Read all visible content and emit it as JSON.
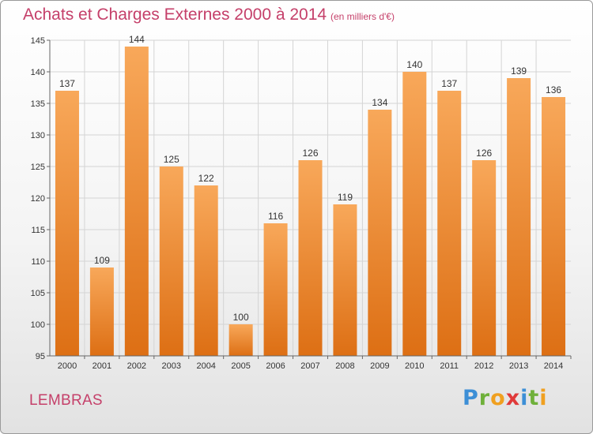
{
  "title": "Achats et Charges Externes 2000 à 2014",
  "subtitle": "(en milliers d'€)",
  "place": "LEMBRAS",
  "logo": {
    "letters": [
      {
        "ch": "P",
        "color": "#3d8fd6"
      },
      {
        "ch": "r",
        "color": "#6fb03a"
      },
      {
        "ch": "o",
        "color": "#f0a020"
      },
      {
        "ch": "x",
        "color": "#e03a3a"
      },
      {
        "ch": "i",
        "color": "#3d8fd6"
      },
      {
        "ch": "t",
        "color": "#6fb03a"
      },
      {
        "ch": "i",
        "color": "#f0a020"
      }
    ]
  },
  "colors": {
    "bar_top": "#f8a85a",
    "bar_bottom": "#dd6f14",
    "text_accent": "#c5406a"
  },
  "chart_data": {
    "type": "bar",
    "categories": [
      "2000",
      "2001",
      "2002",
      "2003",
      "2004",
      "2005",
      "2006",
      "2007",
      "2008",
      "2009",
      "2010",
      "2011",
      "2012",
      "2013",
      "2014"
    ],
    "values": [
      137,
      109,
      144,
      125,
      122,
      100,
      116,
      126,
      119,
      134,
      140,
      137,
      126,
      139,
      136
    ],
    "title": "Achats et Charges Externes 2000 à 2014",
    "subtitle": "(en milliers d'€)",
    "xlabel": "",
    "ylabel": "",
    "ylim": [
      95,
      145
    ],
    "yticks": [
      95,
      100,
      105,
      110,
      115,
      120,
      125,
      130,
      135,
      140,
      145
    ],
    "grid": true,
    "legend": "none"
  }
}
